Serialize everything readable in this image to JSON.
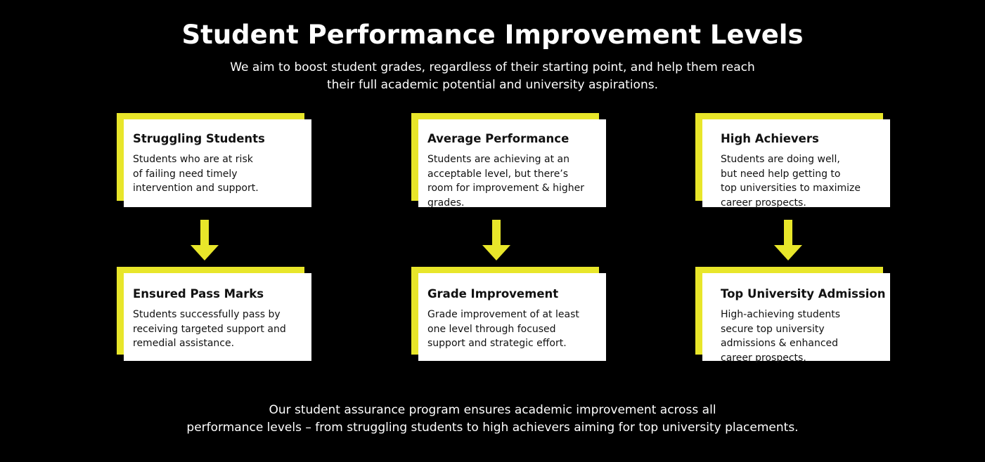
{
  "title": "Student Performance Improvement Levels",
  "subtitle": {
    "line1": "We aim to boost student grades, regardless of their starting point, and help them reach",
    "line2": "their full academic potential and university aspirations."
  },
  "colors": {
    "background": "#000000",
    "accent": "#e8e62a",
    "card": "#ffffff",
    "arrow": "#e8e62a"
  },
  "columns": [
    {
      "top": {
        "title": "Struggling Students",
        "lines": [
          "Students who are at risk",
          "of failing need timely",
          "intervention and support."
        ]
      },
      "bottom": {
        "title": "Ensured Pass Marks",
        "lines": [
          "Students successfully pass by",
          "receiving targeted support and",
          "remedial assistance."
        ]
      }
    },
    {
      "top": {
        "title": "Average Performance",
        "lines": [
          "Students are achieving at an",
          "acceptable level, but there’s",
          "room for improvement & higher",
          "grades."
        ]
      },
      "bottom": {
        "title": "Grade Improvement",
        "lines": [
          "Grade improvement of at least",
          "one level through focused",
          "support and strategic effort."
        ]
      }
    },
    {
      "top": {
        "title": "High Achievers",
        "lines": [
          "Students are doing well,",
          "but need help getting to",
          "top universities to maximize",
          "career prospects."
        ]
      },
      "bottom": {
        "title": "Top University Admission",
        "lines": [
          "High-achieving students",
          "secure top university",
          "admissions & enhanced",
          "career prospects."
        ]
      }
    }
  ],
  "footer": {
    "line1": "Our student assurance program ensures academic improvement across all",
    "line2": "performance levels – from struggling students to high achievers aiming for top university placements."
  }
}
